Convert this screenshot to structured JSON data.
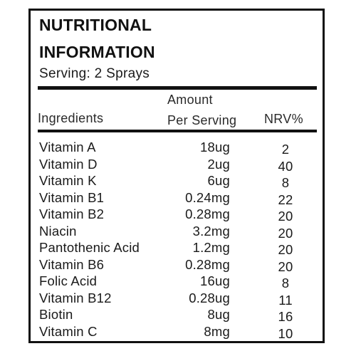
{
  "title_line1": "NUTRITIONAL",
  "title_line2": "INFORMATION",
  "serving": "Serving: 2 Sprays",
  "headers": {
    "ingredients": "Ingredients",
    "amount_line1": "Amount",
    "amount_line2": "Per Serving",
    "nrv": "NRV%"
  },
  "rows": [
    {
      "name": "Vitamin A",
      "amount": "18ug",
      "nrv": "2"
    },
    {
      "name": "Vitamin D",
      "amount": "2ug",
      "nrv": "40"
    },
    {
      "name": "Vitamin K",
      "amount": "6ug",
      "nrv": "8"
    },
    {
      "name": "Vitamin B1",
      "amount": "0.24mg",
      "nrv": "22"
    },
    {
      "name": "Vitamin B2",
      "amount": "0.28mg",
      "nrv": "20"
    },
    {
      "name": "Niacin",
      "amount": "3.2mg",
      "nrv": "20"
    },
    {
      "name": "Pantothenic Acid",
      "amount": "1.2mg",
      "nrv": "20"
    },
    {
      "name": "Vitamin B6",
      "amount": "0.28mg",
      "nrv": "20"
    },
    {
      "name": "Folic Acid",
      "amount": "16ug",
      "nrv": "8"
    },
    {
      "name": "Vitamin B12",
      "amount": "0.28ug",
      "nrv": "11"
    },
    {
      "name": "Biotin",
      "amount": "8ug",
      "nrv": "16"
    },
    {
      "name": "Vitamin C",
      "amount": "8mg",
      "nrv": "10"
    }
  ]
}
